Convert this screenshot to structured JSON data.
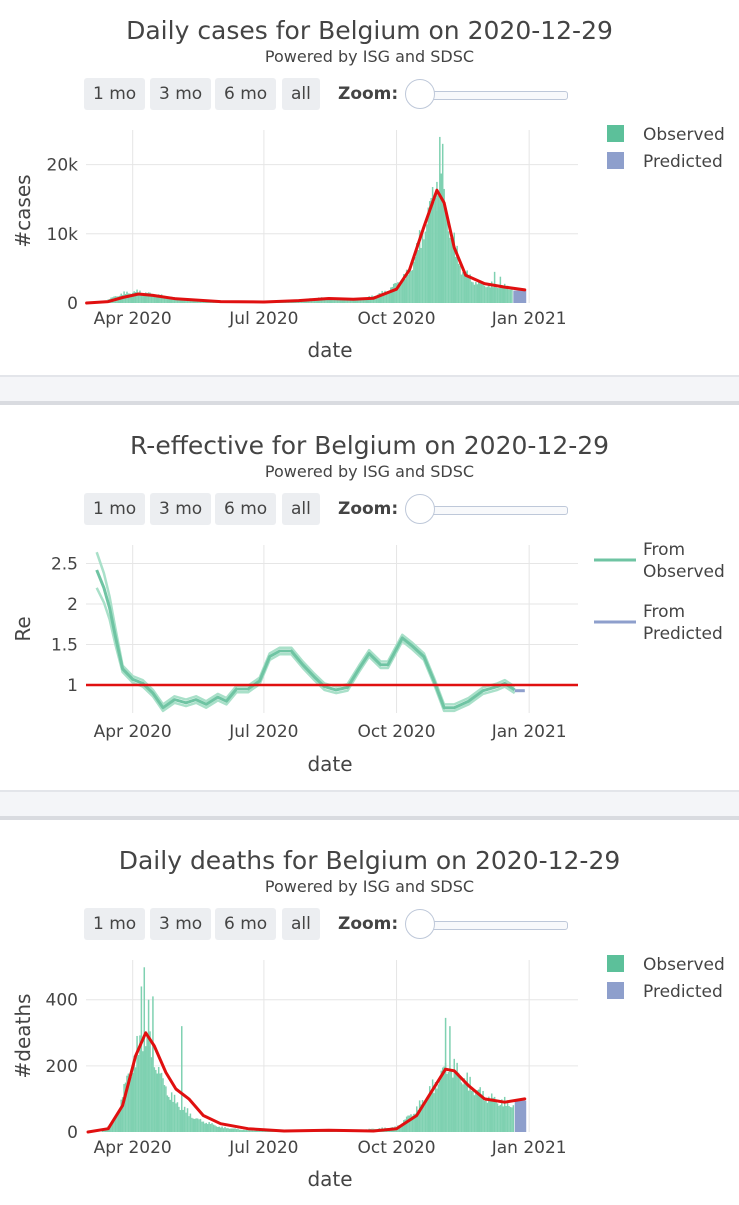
{
  "controls": {
    "buttons": [
      "1 mo",
      "3 mo",
      "6 mo",
      "all"
    ],
    "zoom_label": "Zoom:"
  },
  "colors": {
    "observed": "#7fd1b1",
    "observed_legend": "#5cc09a",
    "predicted": "#8e9fcc",
    "fit": "#e01010",
    "re_line": "#6fc4a3",
    "separator": "#f4f5f8"
  },
  "chart_data": [
    {
      "type": "bar",
      "title": "Daily cases for Belgium on 2020-12-29",
      "subtitle": "Powered by ISG and SDSC",
      "xlabel": "date",
      "ylabel": "#cases",
      "x_ticks": [
        "Apr 2020",
        "Jul 2020",
        "Oct 2020",
        "Jan 2021"
      ],
      "y_ticks": [
        "0",
        "10k",
        "20k"
      ],
      "ylim": [
        0,
        25000
      ],
      "legend": [
        "Observed",
        "Predicted"
      ],
      "legend_position": "top-right",
      "observed_profile": [
        [
          "2020-03-01",
          0
        ],
        [
          "2020-03-10",
          100
        ],
        [
          "2020-03-25",
          1400
        ],
        [
          "2020-04-05",
          1700
        ],
        [
          "2020-04-15",
          1300
        ],
        [
          "2020-05-01",
          700
        ],
        [
          "2020-05-20",
          300
        ],
        [
          "2020-06-15",
          150
        ],
        [
          "2020-07-15",
          300
        ],
        [
          "2020-08-10",
          750
        ],
        [
          "2020-08-25",
          550
        ],
        [
          "2020-09-10",
          700
        ],
        [
          "2020-09-25",
          1800
        ],
        [
          "2020-10-10",
          4500
        ],
        [
          "2020-10-20",
          11000
        ],
        [
          "2020-10-27",
          16000
        ],
        [
          "2020-11-01",
          16500
        ],
        [
          "2020-11-07",
          11000
        ],
        [
          "2020-11-15",
          5000
        ],
        [
          "2020-11-25",
          3000
        ],
        [
          "2020-12-10",
          2500
        ],
        [
          "2020-12-25",
          2200
        ]
      ],
      "observed_spikes": [
        [
          "2020-10-29",
          17500
        ],
        [
          "2020-10-31",
          24000
        ],
        [
          "2020-11-02",
          23000
        ],
        [
          "2020-12-08",
          4500
        ],
        [
          "2020-12-12",
          3800
        ]
      ],
      "predicted_range": [
        "2020-12-21",
        "2020-12-29"
      ],
      "predicted_value": 1800,
      "fit_curve": [
        [
          "2020-02-29",
          0
        ],
        [
          "2020-03-15",
          200
        ],
        [
          "2020-03-25",
          800
        ],
        [
          "2020-04-05",
          1300
        ],
        [
          "2020-04-15",
          1100
        ],
        [
          "2020-05-01",
          600
        ],
        [
          "2020-06-01",
          200
        ],
        [
          "2020-07-01",
          150
        ],
        [
          "2020-07-25",
          350
        ],
        [
          "2020-08-15",
          650
        ],
        [
          "2020-09-01",
          550
        ],
        [
          "2020-09-15",
          700
        ],
        [
          "2020-10-01",
          2000
        ],
        [
          "2020-10-10",
          4800
        ],
        [
          "2020-10-20",
          11000
        ],
        [
          "2020-10-29",
          16300
        ],
        [
          "2020-11-03",
          14500
        ],
        [
          "2020-11-10",
          8000
        ],
        [
          "2020-11-18",
          4000
        ],
        [
          "2020-12-01",
          2800
        ],
        [
          "2020-12-15",
          2300
        ],
        [
          "2020-12-29",
          1900
        ]
      ]
    },
    {
      "type": "line",
      "title": "R-effective for Belgium on 2020-12-29",
      "subtitle": "Powered by ISG and SDSC",
      "xlabel": "date",
      "ylabel": "Re",
      "x_ticks": [
        "Apr 2020",
        "Jul 2020",
        "Oct 2020",
        "Jan 2021"
      ],
      "y_ticks": [
        "1",
        "1.5",
        "2",
        "2.5"
      ],
      "ylim": [
        0.5,
        2.8
      ],
      "reference_line": 1,
      "legend": [
        "From Observed",
        "From Predicted"
      ],
      "legend_position": "top-right",
      "series": [
        {
          "name": "From Observed",
          "points": [
            [
              "2020-03-07",
              2.42
            ],
            [
              "2020-03-12",
              2.2
            ],
            [
              "2020-03-16",
              1.95
            ],
            [
              "2020-03-20",
              1.6
            ],
            [
              "2020-03-25",
              1.2
            ],
            [
              "2020-04-01",
              1.07
            ],
            [
              "2020-04-08",
              1.02
            ],
            [
              "2020-04-15",
              0.9
            ],
            [
              "2020-04-22",
              0.72
            ],
            [
              "2020-04-30",
              0.82
            ],
            [
              "2020-05-08",
              0.78
            ],
            [
              "2020-05-15",
              0.82
            ],
            [
              "2020-05-22",
              0.76
            ],
            [
              "2020-05-30",
              0.85
            ],
            [
              "2020-06-05",
              0.8
            ],
            [
              "2020-06-12",
              0.95
            ],
            [
              "2020-06-20",
              0.95
            ],
            [
              "2020-06-28",
              1.05
            ],
            [
              "2020-07-05",
              1.35
            ],
            [
              "2020-07-12",
              1.42
            ],
            [
              "2020-07-20",
              1.42
            ],
            [
              "2020-07-28",
              1.25
            ],
            [
              "2020-08-05",
              1.1
            ],
            [
              "2020-08-12",
              0.98
            ],
            [
              "2020-08-20",
              0.94
            ],
            [
              "2020-08-28",
              0.97
            ],
            [
              "2020-09-05",
              1.2
            ],
            [
              "2020-09-12",
              1.39
            ],
            [
              "2020-09-20",
              1.25
            ],
            [
              "2020-09-25",
              1.25
            ],
            [
              "2020-10-05",
              1.58
            ],
            [
              "2020-10-12",
              1.48
            ],
            [
              "2020-10-20",
              1.35
            ],
            [
              "2020-10-27",
              1.05
            ],
            [
              "2020-11-03",
              0.72
            ],
            [
              "2020-11-10",
              0.72
            ],
            [
              "2020-11-20",
              0.8
            ],
            [
              "2020-11-30",
              0.93
            ],
            [
              "2020-12-10",
              0.98
            ],
            [
              "2020-12-15",
              1.02
            ],
            [
              "2020-12-22",
              0.94
            ]
          ]
        },
        {
          "name": "From Predicted",
          "points": [
            [
              "2020-12-22",
              0.93
            ],
            [
              "2020-12-29",
              0.93
            ]
          ]
        }
      ]
    },
    {
      "type": "bar",
      "title": "Daily deaths for Belgium on 2020-12-29",
      "subtitle": "Powered by ISG and SDSC",
      "xlabel": "date",
      "ylabel": "#deaths",
      "x_ticks": [
        "Apr 2020",
        "Jul 2020",
        "Oct 2020",
        "Jan 2021"
      ],
      "y_ticks": [
        "0",
        "200",
        "400"
      ],
      "ylim": [
        0,
        520
      ],
      "legend": [
        "Observed",
        "Predicted"
      ],
      "legend_position": "top-right",
      "observed_profile": [
        [
          "2020-03-10",
          0
        ],
        [
          "2020-03-20",
          40
        ],
        [
          "2020-03-28",
          160
        ],
        [
          "2020-04-05",
          260
        ],
        [
          "2020-04-10",
          280
        ],
        [
          "2020-04-15",
          250
        ],
        [
          "2020-04-22",
          150
        ],
        [
          "2020-05-01",
          90
        ],
        [
          "2020-05-15",
          40
        ],
        [
          "2020-06-01",
          15
        ],
        [
          "2020-06-20",
          5
        ],
        [
          "2020-07-20",
          3
        ],
        [
          "2020-08-15",
          8
        ],
        [
          "2020-09-01",
          5
        ],
        [
          "2020-10-01",
          15
        ],
        [
          "2020-10-15",
          70
        ],
        [
          "2020-10-25",
          130
        ],
        [
          "2020-11-03",
          190
        ],
        [
          "2020-11-10",
          195
        ],
        [
          "2020-11-20",
          150
        ],
        [
          "2020-12-01",
          110
        ],
        [
          "2020-12-15",
          90
        ],
        [
          "2020-12-21",
          85
        ]
      ],
      "observed_spikes": [
        [
          "2020-04-07",
          440
        ],
        [
          "2020-04-09",
          498
        ],
        [
          "2020-04-12",
          400
        ],
        [
          "2020-04-15",
          410
        ],
        [
          "2020-05-05",
          320
        ],
        [
          "2020-11-04",
          345
        ],
        [
          "2020-11-07",
          320
        ]
      ],
      "predicted_range": [
        "2020-12-22",
        "2020-12-29"
      ],
      "predicted_value": 95,
      "fit_curve": [
        [
          "2020-03-01",
          0
        ],
        [
          "2020-03-15",
          10
        ],
        [
          "2020-03-25",
          80
        ],
        [
          "2020-04-03",
          230
        ],
        [
          "2020-04-10",
          300
        ],
        [
          "2020-04-16",
          260
        ],
        [
          "2020-04-24",
          180
        ],
        [
          "2020-05-01",
          130
        ],
        [
          "2020-05-10",
          100
        ],
        [
          "2020-05-20",
          50
        ],
        [
          "2020-06-01",
          25
        ],
        [
          "2020-06-20",
          10
        ],
        [
          "2020-07-15",
          3
        ],
        [
          "2020-08-15",
          5
        ],
        [
          "2020-09-15",
          3
        ],
        [
          "2020-10-01",
          10
        ],
        [
          "2020-10-15",
          50
        ],
        [
          "2020-10-25",
          120
        ],
        [
          "2020-11-04",
          190
        ],
        [
          "2020-11-10",
          185
        ],
        [
          "2020-11-20",
          140
        ],
        [
          "2020-12-01",
          100
        ],
        [
          "2020-12-15",
          90
        ],
        [
          "2020-12-29",
          100
        ]
      ]
    }
  ]
}
